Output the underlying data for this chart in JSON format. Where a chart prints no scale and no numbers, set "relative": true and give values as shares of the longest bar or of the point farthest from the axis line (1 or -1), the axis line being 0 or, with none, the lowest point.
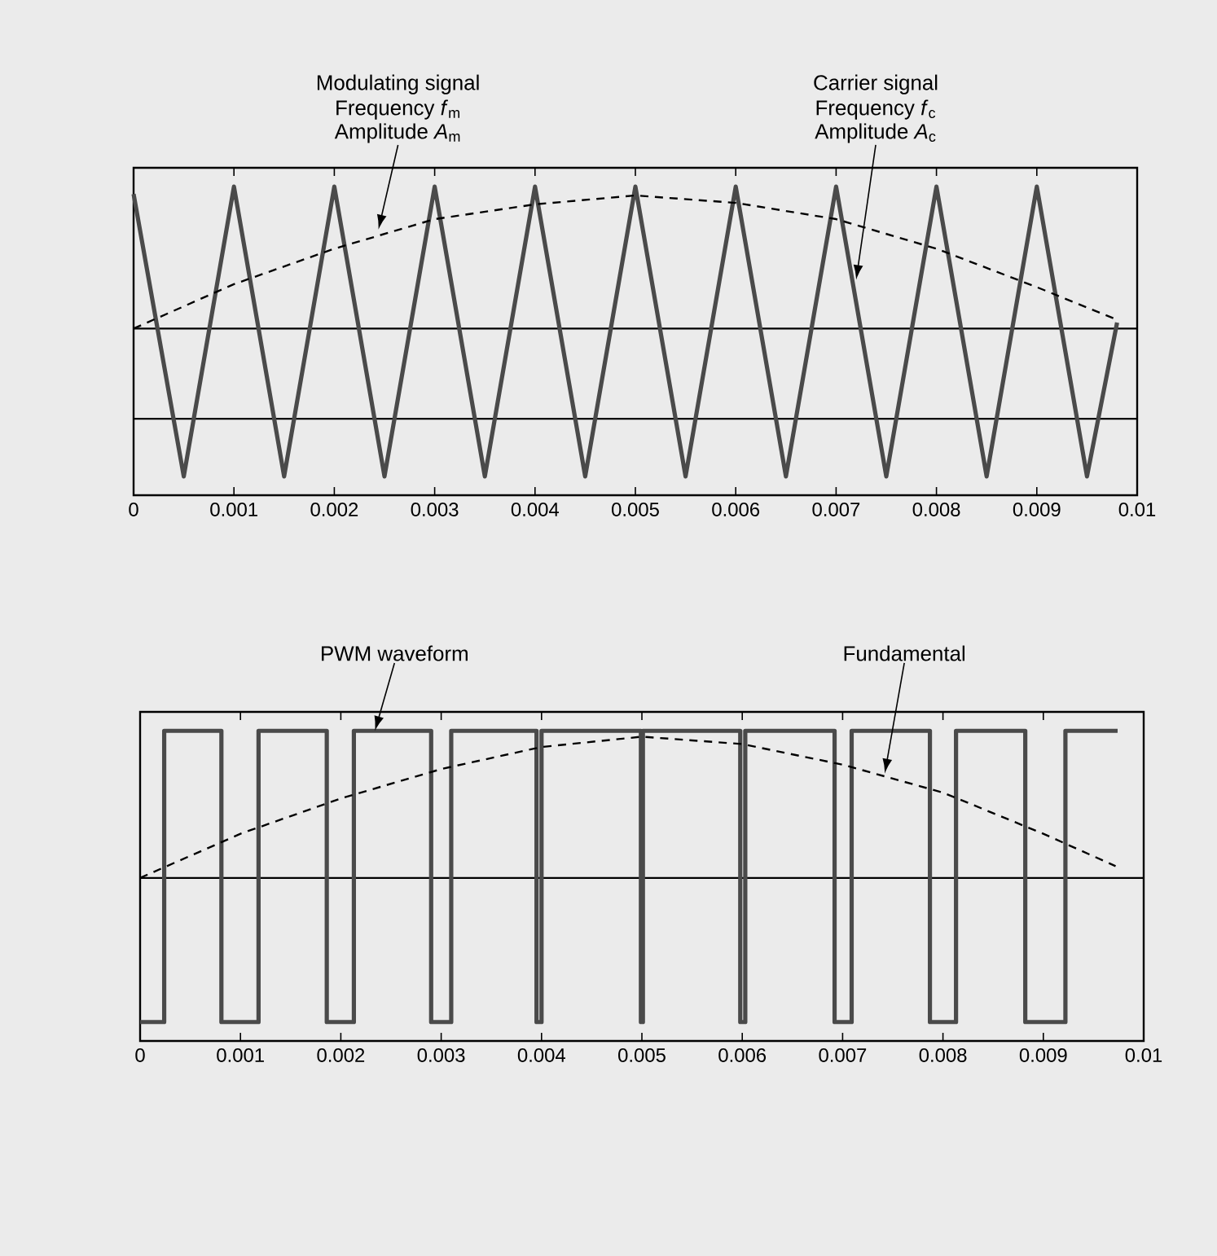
{
  "chart_data": [
    {
      "type": "line",
      "relative": true,
      "xlim": [
        0,
        0.01
      ],
      "xticks": [
        0,
        0.001,
        0.002,
        0.003,
        0.004,
        0.005,
        0.006,
        0.007,
        0.008,
        0.009,
        0.01
      ],
      "tick_labels": "x",
      "grid": false,
      "marker": "none",
      "series": [
        {
          "color": "#4a4a4a",
          "line_style": "solid",
          "x": [
            0,
            0.0005,
            0.001,
            0.0015,
            0.002,
            0.0025,
            0.003,
            0.0035,
            0.004,
            0.0045,
            0.005,
            0.0055,
            0.006,
            0.0065,
            0.007,
            0.0075,
            0.008,
            0.0085,
            0.009,
            0.0095,
            0.0098
          ],
          "values": [
            0.91,
            -1,
            0.96,
            -1,
            0.96,
            -1,
            0.96,
            -1,
            0.96,
            -1,
            0.96,
            -1,
            0.96,
            -1,
            0.96,
            -1,
            0.96,
            -1,
            0.96,
            -1,
            0.04
          ]
        },
        {
          "color": "#000000",
          "line_style": "dashed",
          "x": [
            0,
            0.001,
            0.002,
            0.003,
            0.004,
            0.005,
            0.006,
            0.007,
            0.008,
            0.009,
            0.0098
          ],
          "values": [
            0,
            0.3,
            0.54,
            0.74,
            0.84,
            0.9,
            0.85,
            0.74,
            0.54,
            0.28,
            0.06
          ]
        }
      ],
      "ref_lines": [
        {
          "axis": "y",
          "value": 0,
          "color": "#000000"
        },
        {
          "axis": "y",
          "value": -0.61,
          "color": "#000000"
        }
      ],
      "annotations": [
        "Modulating signal",
        "Frequency *f*$_{m}$",
        {
          "text": "Amplitude *A*$_{m}$",
          "x": 0.00244,
          "y": 0.67
        },
        "Carrier signal",
        "Frequency *f*$_{c}$",
        {
          "text": "Amplitude *A*$_{c}$",
          "x": 0.0072,
          "y": 0.33
        }
      ]
    },
    {
      "type": "line",
      "relative": true,
      "xlim": [
        0,
        0.01
      ],
      "xticks": [
        0,
        0.001,
        0.002,
        0.003,
        0.004,
        0.005,
        0.006,
        0.007,
        0.008,
        0.009,
        0.01
      ],
      "tick_labels": "x",
      "grid": false,
      "marker": "none",
      "series": [
        {
          "type": "step",
          "color": "#4a4a4a",
          "line_style": "solid",
          "x": [
            0,
            0.00024,
            0.00081,
            0.00118,
            0.00186,
            0.00213,
            0.0029,
            0.0031,
            0.00395,
            0.004,
            0.00499,
            0.00501,
            0.00598,
            0.00603,
            0.00692,
            0.00709,
            0.00787,
            0.00813,
            0.00882,
            0.00922,
            0.00974
          ],
          "values": [
            -0.98,
            1,
            -0.98,
            1,
            -0.98,
            1,
            -0.98,
            1,
            -0.98,
            1,
            -0.98,
            1,
            -0.98,
            1,
            -0.98,
            1,
            -0.98,
            1,
            -0.98,
            1,
            1
          ]
        },
        {
          "color": "#000000",
          "line_style": "dashed",
          "x": [
            0,
            0.001,
            0.002,
            0.003,
            0.004,
            0.005,
            0.006,
            0.007,
            0.008,
            0.009,
            0.00972
          ],
          "values": [
            0,
            0.3,
            0.54,
            0.74,
            0.89,
            0.96,
            0.91,
            0.77,
            0.58,
            0.3,
            0.08
          ]
        }
      ],
      "ref_lines": [
        {
          "axis": "y",
          "value": 0,
          "color": "#000000"
        }
      ],
      "annotations": [
        {
          "text": "PWM waveform",
          "x": 0.00234,
          "y": 1
        },
        {
          "text": "Fundamental",
          "x": 0.00742,
          "y": 0.71
        }
      ]
    }
  ]
}
